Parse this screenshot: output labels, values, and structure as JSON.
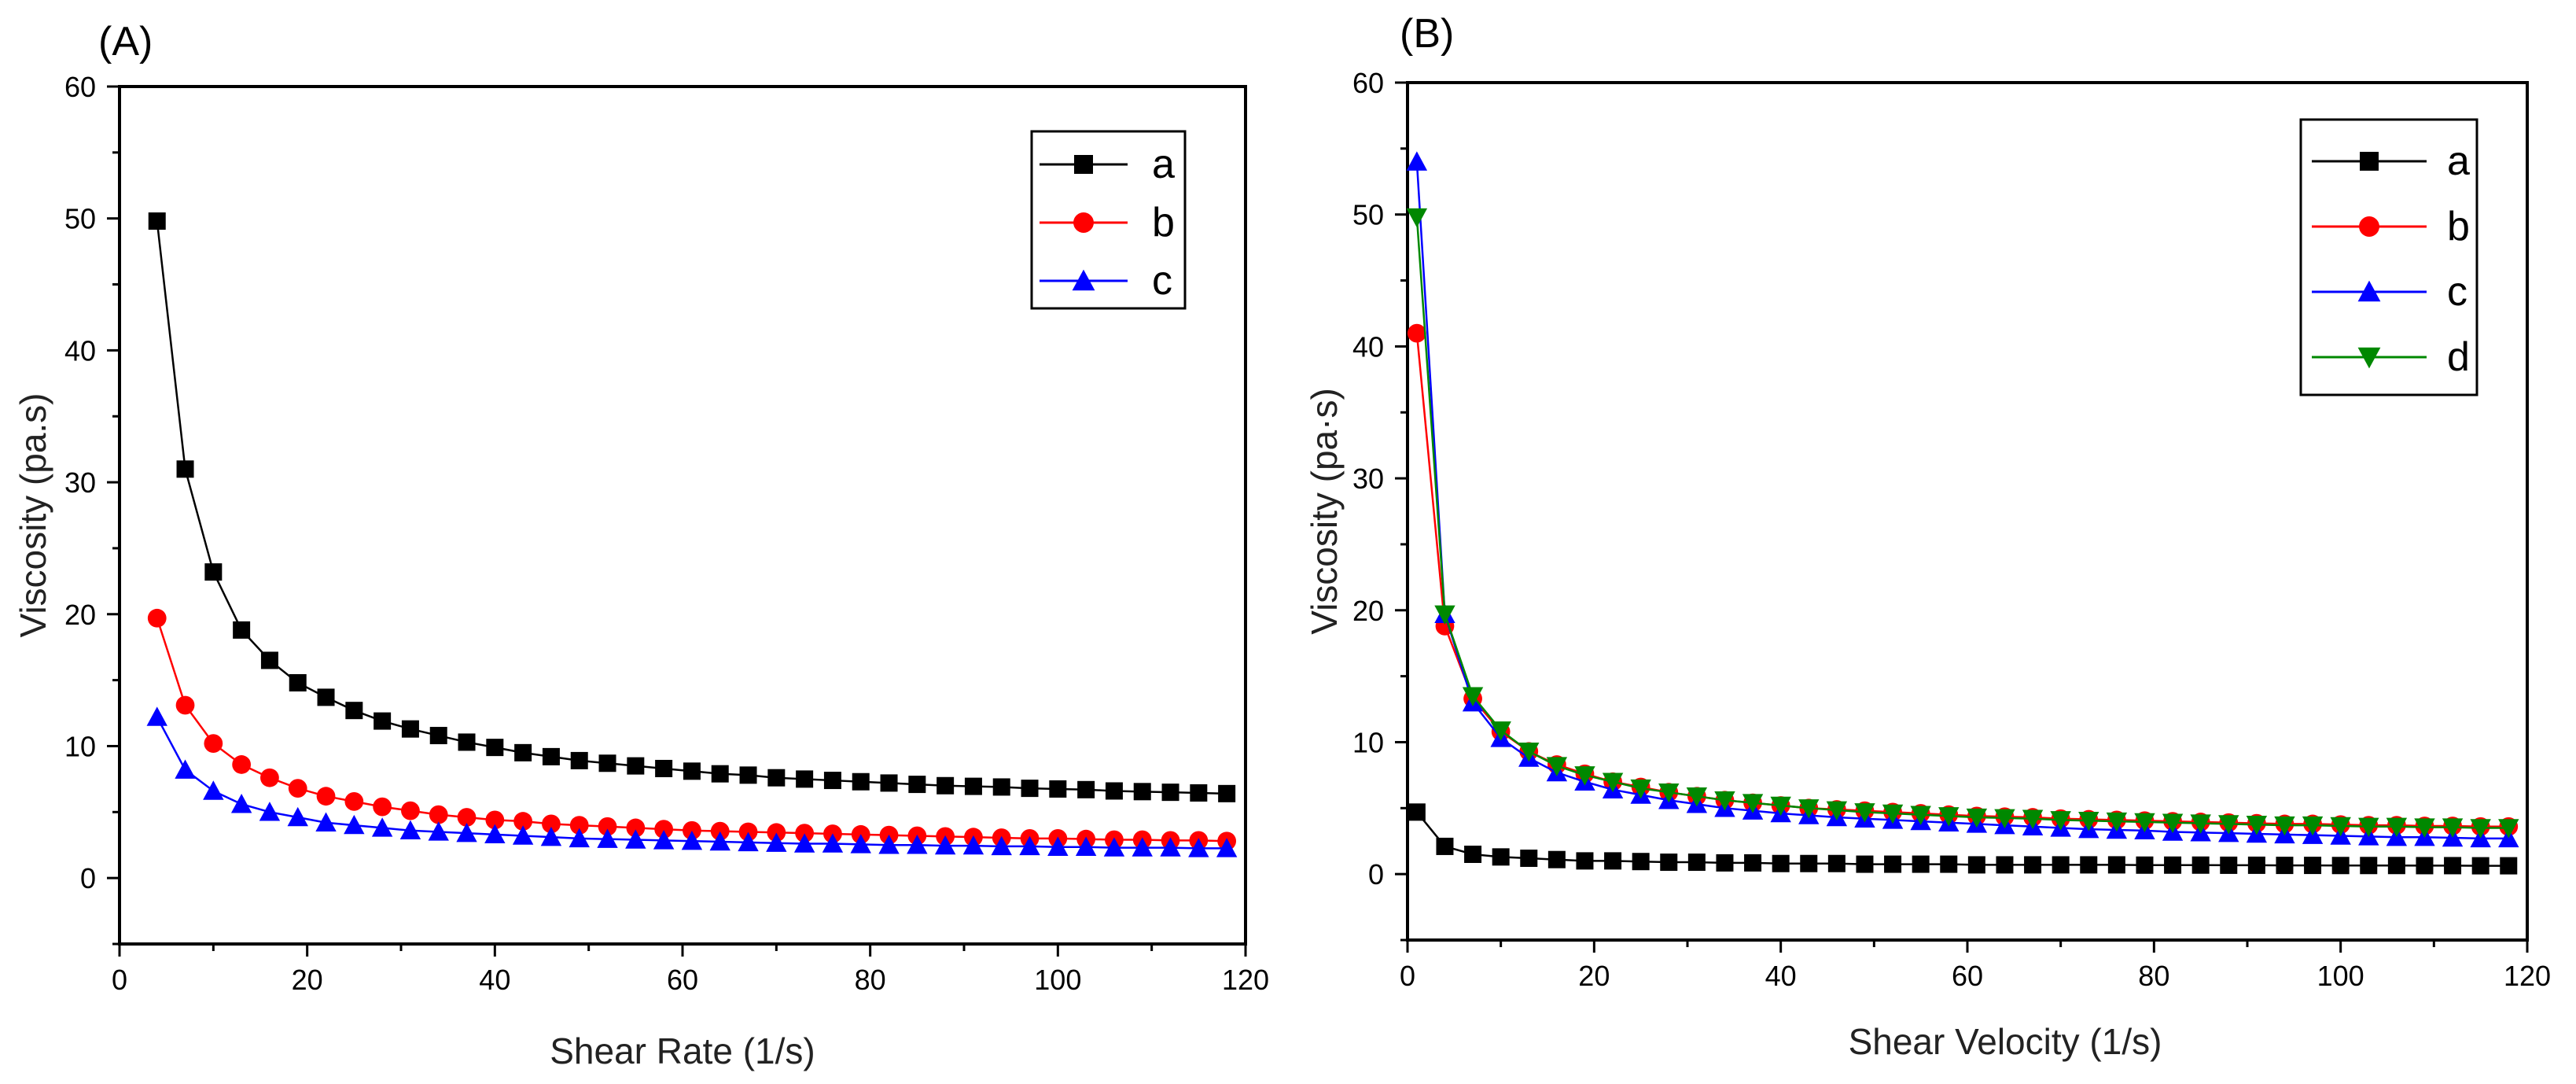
{
  "chart_data": [
    {
      "type": "line",
      "panel_label": "(A)",
      "xlabel": "Shear Rate (1/s)",
      "ylabel": "Viscosity (pa.s)",
      "xlim": [
        0,
        120
      ],
      "ylim": [
        -5,
        60
      ],
      "xticks": [
        0,
        20,
        40,
        60,
        80,
        100,
        120
      ],
      "yticks": [
        0,
        10,
        20,
        30,
        40,
        50,
        60
      ],
      "legend_position": "top-right",
      "series": [
        {
          "name": "a",
          "color": "#000000",
          "marker": "square",
          "x": [
            4,
            7,
            10,
            13,
            16,
            19,
            22,
            25,
            28,
            31,
            34,
            37,
            40,
            43,
            46,
            49,
            52,
            55,
            58,
            61,
            64,
            67,
            70,
            73,
            76,
            79,
            82,
            85,
            88,
            91,
            94,
            97,
            100,
            103,
            106,
            109,
            112,
            115,
            118
          ],
          "y": [
            49.8,
            31.0,
            23.2,
            18.8,
            16.5,
            14.8,
            13.7,
            12.7,
            11.9,
            11.3,
            10.8,
            10.3,
            9.9,
            9.5,
            9.2,
            8.9,
            8.7,
            8.5,
            8.3,
            8.1,
            7.9,
            7.8,
            7.6,
            7.5,
            7.4,
            7.3,
            7.2,
            7.1,
            7.0,
            6.95,
            6.9,
            6.8,
            6.75,
            6.7,
            6.6,
            6.55,
            6.5,
            6.45,
            6.4
          ]
        },
        {
          "name": "b",
          "color": "#ff0000",
          "marker": "circle",
          "x": [
            4,
            7,
            10,
            13,
            16,
            19,
            22,
            25,
            28,
            31,
            34,
            37,
            40,
            43,
            46,
            49,
            52,
            55,
            58,
            61,
            64,
            67,
            70,
            73,
            76,
            79,
            82,
            85,
            88,
            91,
            94,
            97,
            100,
            103,
            106,
            109,
            112,
            115,
            118
          ],
          "y": [
            19.7,
            13.1,
            10.2,
            8.6,
            7.6,
            6.8,
            6.2,
            5.8,
            5.4,
            5.1,
            4.8,
            4.6,
            4.4,
            4.3,
            4.1,
            4.0,
            3.9,
            3.8,
            3.7,
            3.6,
            3.55,
            3.5,
            3.45,
            3.4,
            3.35,
            3.3,
            3.25,
            3.2,
            3.15,
            3.1,
            3.05,
            3.0,
            3.0,
            2.95,
            2.9,
            2.9,
            2.85,
            2.85,
            2.8
          ]
        },
        {
          "name": "c",
          "color": "#0000ff",
          "marker": "triangle-up",
          "x": [
            4,
            7,
            10,
            13,
            16,
            19,
            22,
            25,
            28,
            31,
            34,
            37,
            40,
            43,
            46,
            49,
            52,
            55,
            58,
            61,
            64,
            67,
            70,
            73,
            76,
            79,
            82,
            85,
            88,
            91,
            94,
            97,
            100,
            103,
            106,
            109,
            112,
            115,
            118
          ],
          "y": [
            12.2,
            8.2,
            6.6,
            5.6,
            5.0,
            4.6,
            4.2,
            4.0,
            3.8,
            3.6,
            3.5,
            3.4,
            3.3,
            3.2,
            3.1,
            3.0,
            2.95,
            2.9,
            2.85,
            2.8,
            2.75,
            2.7,
            2.65,
            2.6,
            2.6,
            2.55,
            2.5,
            2.5,
            2.45,
            2.45,
            2.4,
            2.4,
            2.35,
            2.35,
            2.3,
            2.3,
            2.3,
            2.25,
            2.25
          ]
        }
      ]
    },
    {
      "type": "line",
      "panel_label": "(B)",
      "xlabel": "Shear Velocity (1/s)",
      "ylabel": "Viscosity (pa·s)",
      "xlim": [
        0,
        120
      ],
      "ylim": [
        -5,
        60
      ],
      "xticks": [
        0,
        20,
        40,
        60,
        80,
        100,
        120
      ],
      "yticks": [
        0,
        10,
        20,
        30,
        40,
        50,
        60
      ],
      "legend_position": "top-right",
      "series": [
        {
          "name": "a",
          "color": "#000000",
          "marker": "square",
          "x": [
            1,
            4,
            7,
            10,
            13,
            16,
            19,
            22,
            25,
            28,
            31,
            34,
            37,
            40,
            43,
            46,
            49,
            52,
            55,
            58,
            61,
            64,
            67,
            70,
            73,
            76,
            79,
            82,
            85,
            88,
            91,
            94,
            97,
            100,
            103,
            106,
            109,
            112,
            115,
            118
          ],
          "y": [
            4.7,
            2.1,
            1.5,
            1.3,
            1.2,
            1.1,
            1.0,
            1.0,
            0.95,
            0.9,
            0.9,
            0.85,
            0.85,
            0.8,
            0.8,
            0.8,
            0.75,
            0.75,
            0.75,
            0.75,
            0.7,
            0.7,
            0.7,
            0.7,
            0.7,
            0.7,
            0.68,
            0.68,
            0.68,
            0.67,
            0.67,
            0.66,
            0.66,
            0.65,
            0.65,
            0.65,
            0.64,
            0.64,
            0.63,
            0.63
          ]
        },
        {
          "name": "b",
          "color": "#ff0000",
          "marker": "circle",
          "x": [
            1,
            4,
            7,
            10,
            13,
            16,
            19,
            22,
            25,
            28,
            31,
            34,
            37,
            40,
            43,
            46,
            49,
            52,
            55,
            58,
            61,
            64,
            67,
            70,
            73,
            76,
            79,
            82,
            85,
            88,
            91,
            94,
            97,
            100,
            103,
            106,
            109,
            112,
            115,
            118
          ],
          "y": [
            41.0,
            18.8,
            13.3,
            10.8,
            9.3,
            8.3,
            7.6,
            7.0,
            6.6,
            6.2,
            5.9,
            5.6,
            5.4,
            5.2,
            5.0,
            4.9,
            4.8,
            4.7,
            4.6,
            4.5,
            4.4,
            4.35,
            4.3,
            4.2,
            4.15,
            4.1,
            4.05,
            4.0,
            3.95,
            3.9,
            3.85,
            3.8,
            3.8,
            3.75,
            3.7,
            3.7,
            3.65,
            3.65,
            3.6,
            3.6
          ]
        },
        {
          "name": "c",
          "color": "#0000ff",
          "marker": "triangle-up",
          "x": [
            1,
            4,
            7,
            10,
            13,
            16,
            19,
            22,
            25,
            28,
            31,
            34,
            37,
            40,
            43,
            46,
            49,
            52,
            55,
            58,
            61,
            64,
            67,
            70,
            73,
            76,
            79,
            82,
            85,
            88,
            91,
            94,
            97,
            100,
            103,
            106,
            109,
            112,
            115,
            118
          ],
          "y": [
            54.0,
            19.7,
            13.0,
            10.3,
            8.8,
            7.7,
            7.0,
            6.4,
            6.0,
            5.6,
            5.3,
            5.0,
            4.8,
            4.6,
            4.45,
            4.3,
            4.2,
            4.1,
            4.0,
            3.9,
            3.8,
            3.7,
            3.6,
            3.5,
            3.4,
            3.35,
            3.3,
            3.2,
            3.15,
            3.1,
            3.05,
            3.0,
            2.95,
            2.9,
            2.85,
            2.8,
            2.8,
            2.75,
            2.7,
            2.7
          ]
        },
        {
          "name": "d",
          "color": "#008800",
          "marker": "triangle-down",
          "x": [
            1,
            4,
            7,
            10,
            13,
            16,
            19,
            22,
            25,
            28,
            31,
            34,
            37,
            40,
            43,
            46,
            49,
            52,
            55,
            58,
            61,
            64,
            67,
            70,
            73,
            76,
            79,
            82,
            85,
            88,
            91,
            94,
            97,
            100,
            103,
            106,
            109,
            112,
            115,
            118
          ],
          "y": [
            49.8,
            19.7,
            13.5,
            10.9,
            9.3,
            8.2,
            7.5,
            7.0,
            6.5,
            6.2,
            5.9,
            5.6,
            5.4,
            5.2,
            5.0,
            4.85,
            4.7,
            4.6,
            4.5,
            4.4,
            4.3,
            4.25,
            4.2,
            4.1,
            4.05,
            4.0,
            3.95,
            3.9,
            3.85,
            3.8,
            3.75,
            3.7,
            3.7,
            3.65,
            3.6,
            3.6,
            3.55,
            3.55,
            3.5,
            3.5
          ]
        }
      ]
    }
  ]
}
